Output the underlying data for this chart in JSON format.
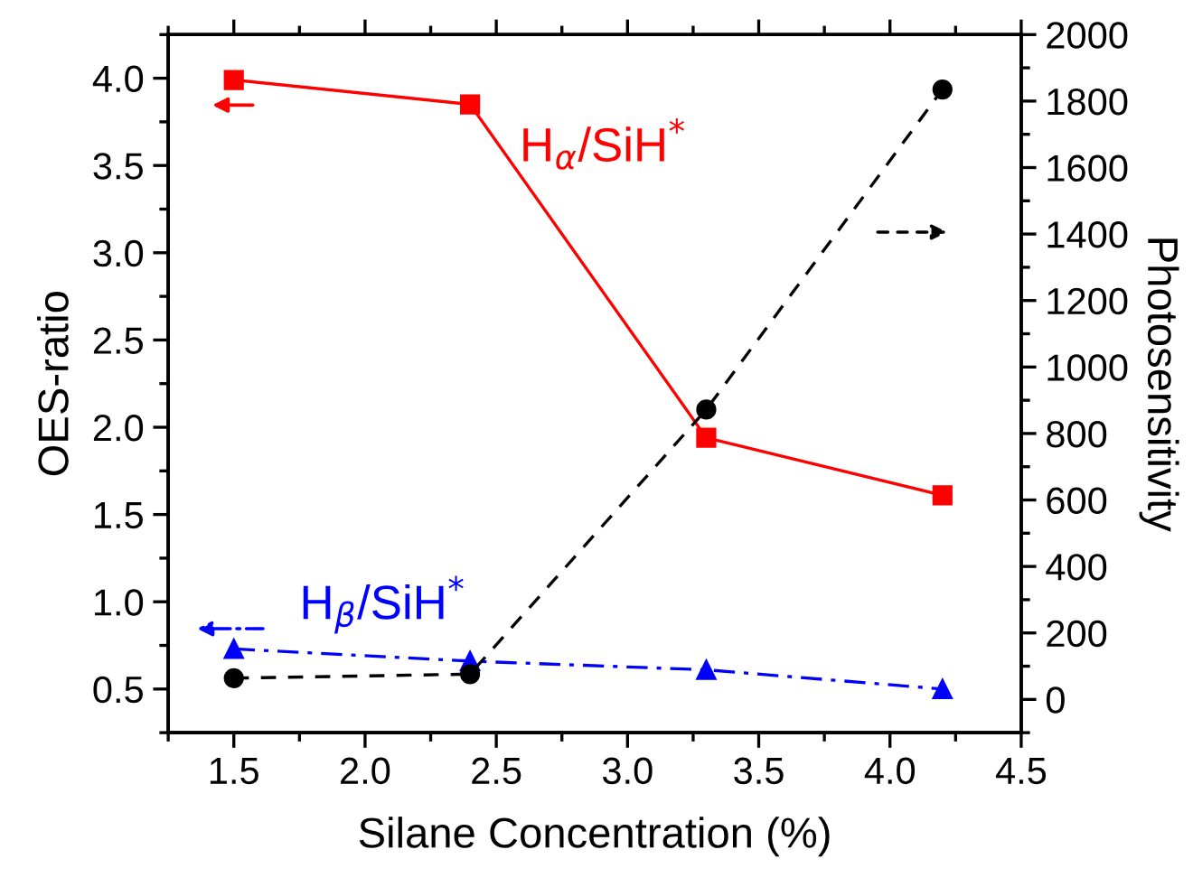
{
  "chart_data": {
    "type": "line",
    "xlabel": "Silane Concentration (%)",
    "ylabel": "OES-ratio",
    "y2label": "Photosensitivity",
    "x": [
      1.5,
      2.4,
      3.3,
      4.2
    ],
    "xlim": [
      1.25,
      4.5
    ],
    "xticks": [
      1.5,
      {
        "value": 2,
        "label": "2.0"
      },
      2.5,
      {
        "value": 3,
        "label": "3.0"
      },
      3.5,
      {
        "value": 4,
        "label": "4.0"
      },
      4.5
    ],
    "ylim": [
      0.25,
      4.25
    ],
    "yticks": [
      0.5,
      {
        "value": 1,
        "label": "1.0"
      },
      1.5,
      {
        "value": 2,
        "label": "2.0"
      },
      2.5,
      {
        "value": 3,
        "label": "3.0"
      },
      3.5,
      {
        "value": 4,
        "label": "4.0"
      }
    ],
    "y2lim": [
      -100,
      2000
    ],
    "y2ticks": [
      0,
      200,
      400,
      600,
      800,
      1000,
      1200,
      1400,
      1600,
      1800,
      2000
    ],
    "series": [
      {
        "color": "#ff0000",
        "marker": "square",
        "line_style": "solid",
        "values": [
          3.99,
          3.85,
          1.94,
          1.61
        ]
      },
      {
        "color": "#000000",
        "marker": "circle",
        "line_style": "dashed",
        "axis": "y2",
        "values": [
          64,
          76,
          872,
          1835
        ]
      },
      {
        "color": "#0000ff",
        "marker": "triangle",
        "line_style": "dashdot",
        "values": [
          0.73,
          0.66,
          0.61,
          0.5
        ]
      }
    ],
    "annotations": [
      "H$_{α}$/SiH$^{*}$",
      "H$_{β}$/SiH$^{*}$"
    ]
  }
}
